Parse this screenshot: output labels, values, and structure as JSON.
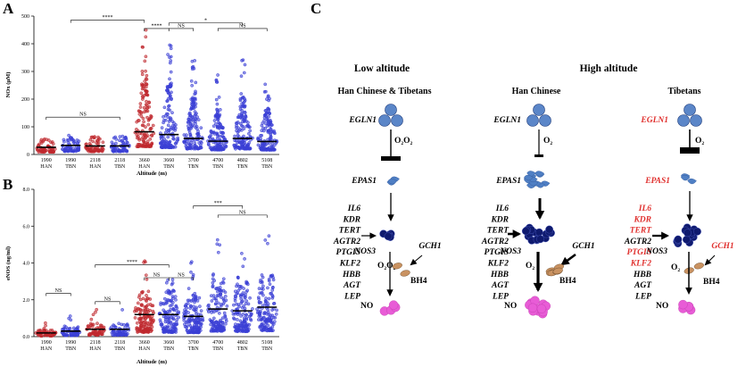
{
  "panels": {
    "a": "A",
    "b": "B",
    "c": "C"
  },
  "colors": {
    "han": "#c0282e",
    "tbn": "#3b3fd6",
    "red_gene": "#e0302e",
    "egln": "#5b86c8",
    "epas": "#4f7fc4",
    "nos3": "#0f1a6e",
    "bh4": "#c99261",
    "no": "#e85cd6"
  },
  "chart_a": {
    "type": "scatter",
    "ylabel": "NOx (µM)",
    "xlabel": "Altitude (m)",
    "ylim": [
      0,
      500
    ],
    "yticks": [
      "0",
      "100",
      "200",
      "300",
      "400",
      "500"
    ],
    "groups": [
      {
        "alt": "1990",
        "pop": "HAN",
        "median": 26
      },
      {
        "alt": "1990",
        "pop": "TBN",
        "median": 33
      },
      {
        "alt": "2118",
        "pop": "HAN",
        "median": 31
      },
      {
        "alt": "2118",
        "pop": "TBN",
        "median": 31
      },
      {
        "alt": "3660",
        "pop": "HAN",
        "median": 82
      },
      {
        "alt": "3660",
        "pop": "TBN",
        "median": 72
      },
      {
        "alt": "3700",
        "pop": "TBN",
        "median": 58
      },
      {
        "alt": "4700",
        "pop": "TBN",
        "median": 48
      },
      {
        "alt": "4802",
        "pop": "TBN",
        "median": 58
      },
      {
        "alt": "5108",
        "pop": "TBN",
        "median": 47
      }
    ],
    "brackets": [
      "NS",
      "****",
      "****",
      "NS",
      "*",
      "NS"
    ]
  },
  "chart_b": {
    "type": "scatter",
    "ylabel": "eNOS (ng/ml)",
    "xlabel": "Altitude (m)",
    "ylim": [
      0,
      8
    ],
    "yticks": [
      "0.0",
      "2.0",
      "4.0",
      "6.0",
      "8.0"
    ],
    "groups": [
      {
        "alt": "1990",
        "pop": "HAN",
        "median": 0.2
      },
      {
        "alt": "1990",
        "pop": "TBN",
        "median": 0.3
      },
      {
        "alt": "2118",
        "pop": "HAN",
        "median": 0.4
      },
      {
        "alt": "2118",
        "pop": "TBN",
        "median": 0.4
      },
      {
        "alt": "3660",
        "pop": "HAN",
        "median": 1.2
      },
      {
        "alt": "3660",
        "pop": "TBN",
        "median": 1.2
      },
      {
        "alt": "3700",
        "pop": "TBN",
        "median": 1.1
      },
      {
        "alt": "4700",
        "pop": "TBN",
        "median": 1.5
      },
      {
        "alt": "4802",
        "pop": "TBN",
        "median": 1.4
      },
      {
        "alt": "5108",
        "pop": "TBN",
        "median": 1.6
      }
    ],
    "brackets": [
      "NS",
      "NS",
      "****",
      "NS",
      "NS",
      "***",
      "NS"
    ]
  },
  "diagram": {
    "low_title": "Low altitude",
    "high_title": "High altitude",
    "col1_title": "Han Chinese & Tibetans",
    "col2_title": "Han Chinese",
    "col3_title": "Tibetans",
    "egln1": "EGLN1",
    "epas1": "EPAS1",
    "nos3": "NOS3",
    "gch1": "GCH1",
    "bh4": "BH4",
    "no": "NO",
    "o2_a": "O",
    "o2_sub": "2",
    "o2_b": "O",
    "genes": [
      "IL6",
      "KDR",
      "TERT",
      "AGTR2",
      "PTGIS",
      "KLF2",
      "HBB",
      "AGT",
      "LEP"
    ],
    "red_genes_tibetan": [
      "IL6",
      "KDR",
      "TERT",
      "PTGIS",
      "KLF2"
    ]
  }
}
